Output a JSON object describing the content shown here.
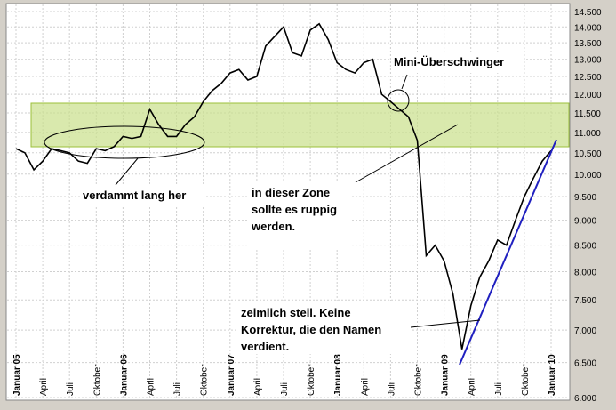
{
  "chart_data": {
    "type": "line",
    "categories": [
      "Januar 05",
      null,
      null,
      "April",
      null,
      null,
      "Juli",
      null,
      null,
      "Oktober",
      null,
      null,
      "Januar 06",
      null,
      null,
      "April",
      null,
      null,
      "Juli",
      null,
      null,
      "Oktober",
      null,
      null,
      "Januar 07",
      null,
      null,
      "April",
      null,
      null,
      "Juli",
      null,
      null,
      "Oktober",
      null,
      null,
      "Januar 08",
      null,
      null,
      "April",
      null,
      null,
      "Juli",
      null,
      null,
      "Oktober",
      null,
      null,
      "Januar 09",
      null,
      null,
      "April",
      null,
      null,
      "Juli",
      null,
      null,
      "Oktober",
      null,
      null,
      "Januar 10"
    ],
    "series": [
      {
        "color": "#000000",
        "values": [
          10600,
          10500,
          10100,
          10300,
          10600,
          10550,
          10500,
          10300,
          10250,
          10600,
          10550,
          10650,
          10900,
          10850,
          10900,
          11600,
          11200,
          10900,
          10900,
          11200,
          11400,
          11800,
          12100,
          12300,
          12600,
          12700,
          12400,
          12500,
          13400,
          13700,
          14000,
          13200,
          13100,
          13900,
          14100,
          13600,
          12900,
          12700,
          12600,
          12900,
          13000,
          12000,
          11800,
          11600,
          11400,
          10800,
          8300,
          8500,
          8200,
          7600,
          6700,
          7400,
          7900,
          8200,
          8600,
          8500,
          9000,
          9500,
          9900,
          10300,
          10550
        ]
      }
    ],
    "ylim": [
      6000,
      14500
    ],
    "log_scale": true,
    "grid": true,
    "yticks": [
      {
        "value": 6000,
        "label": "6.000"
      },
      {
        "value": 6500,
        "label": "6.500"
      },
      {
        "value": 7000,
        "label": "7.000"
      },
      {
        "value": 7500,
        "label": "7.500"
      },
      {
        "value": 8000,
        "label": "8.000"
      },
      {
        "value": 8500,
        "label": "8.500"
      },
      {
        "value": 9000,
        "label": "9.000"
      },
      {
        "value": 9500,
        "label": "9.500"
      },
      {
        "value": 10000,
        "label": "10.000"
      },
      {
        "value": 10500,
        "label": "10.500"
      },
      {
        "value": 11000,
        "label": "11.000"
      },
      {
        "value": 11500,
        "label": "11.500"
      },
      {
        "value": 12000,
        "label": "12.000"
      },
      {
        "value": 12500,
        "label": "12.500"
      },
      {
        "value": 13000,
        "label": "13.000"
      },
      {
        "value": 13500,
        "label": "13.500"
      },
      {
        "value": 14000,
        "label": "14.000"
      },
      {
        "value": 14500,
        "label": "14.500"
      }
    ],
    "annotations": [
      [
        "verdammt lang her"
      ],
      [
        "in dieser Zone",
        "sollte es ruppig",
        "werden."
      ],
      [
        "Mini-Überschwinger"
      ],
      [
        "zeimlich steil.  Keine",
        "Korrektur, die den Namen",
        "verdient."
      ]
    ]
  }
}
